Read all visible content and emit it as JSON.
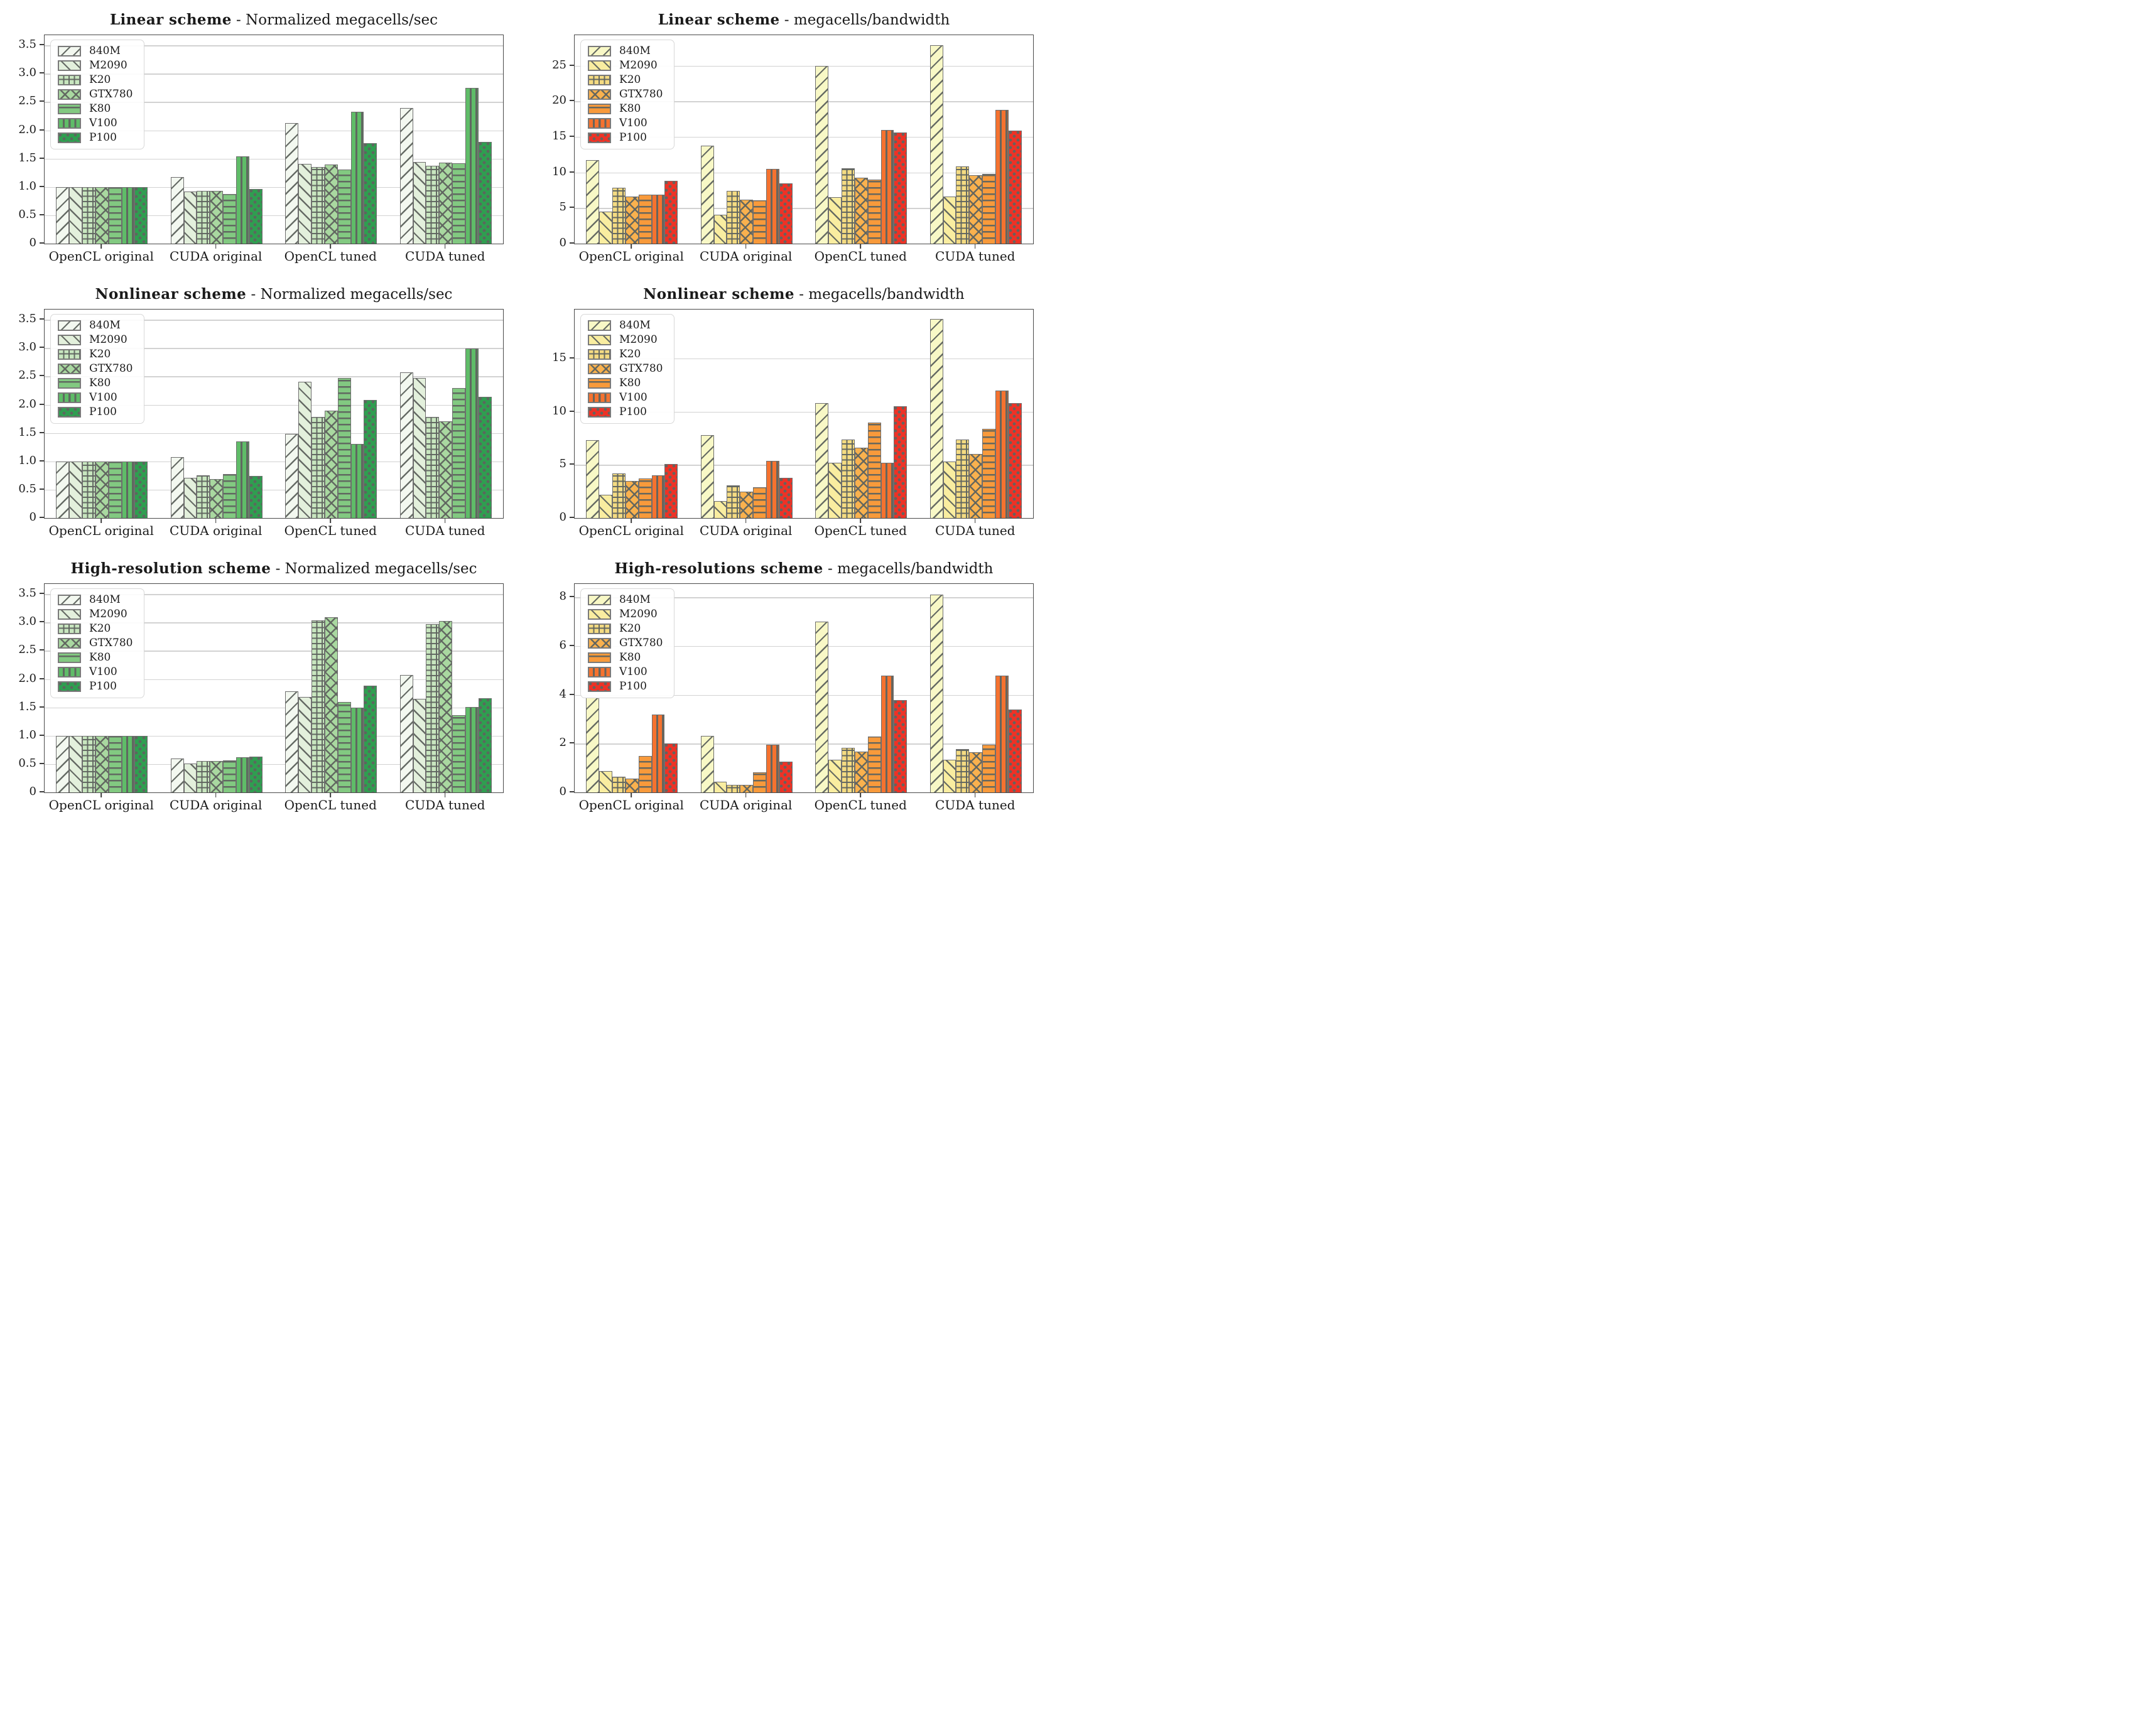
{
  "figure": {
    "style": {
      "hatch_color": "#5f645f",
      "bar_edge_color": "#6e6e6e",
      "gridline_color": "#d2d2d2",
      "spine_color": "#4a4a4a"
    }
  },
  "chart_data": [
    {
      "id": "linear-norm",
      "type": "bar",
      "title_bold": "Linear scheme",
      "title_sep": " - ",
      "title_regular": "Normalized megacells/sec",
      "categories": [
        "OpenCL original",
        "CUDA original",
        "OpenCL tuned",
        "CUDA tuned"
      ],
      "ylim": [
        0,
        3.68
      ],
      "grid": true,
      "legend_position": "upper-left",
      "yticks": [
        {
          "v": 0,
          "label": "0"
        },
        {
          "v": 0.5,
          "label": "0.5"
        },
        {
          "v": 1.0,
          "label": "1.0"
        },
        {
          "v": 1.5,
          "label": "1.5"
        },
        {
          "v": 2.0,
          "label": "2.0"
        },
        {
          "v": 2.5,
          "label": "2.5"
        },
        {
          "v": 3.0,
          "label": "3.0"
        },
        {
          "v": 3.5,
          "label": "3.5"
        }
      ],
      "series": [
        {
          "name": "840M",
          "hatch": "fslash",
          "color": "#f3f8f0",
          "values": [
            1.0,
            1.18,
            2.13,
            2.39
          ]
        },
        {
          "name": "M2090",
          "hatch": "bslash",
          "color": "#e3f0dc",
          "values": [
            1.0,
            0.92,
            1.41,
            1.44
          ]
        },
        {
          "name": "K20",
          "hatch": "grid",
          "color": "#c8e6bf",
          "values": [
            1.0,
            0.93,
            1.35,
            1.38
          ]
        },
        {
          "name": "GTX780",
          "hatch": "cross",
          "color": "#a9d8a0",
          "values": [
            1.0,
            0.93,
            1.4,
            1.43
          ]
        },
        {
          "name": "K80",
          "hatch": "horiz",
          "color": "#82c981",
          "values": [
            1.0,
            0.88,
            1.31,
            1.42
          ]
        },
        {
          "name": "V100",
          "hatch": "vert",
          "color": "#5fbc68",
          "values": [
            1.0,
            1.54,
            2.33,
            2.75
          ]
        },
        {
          "name": "P100",
          "hatch": "dot",
          "color": "#2f9e50",
          "values": [
            1.0,
            0.96,
            1.77,
            1.8
          ]
        }
      ]
    },
    {
      "id": "linear-bw",
      "type": "bar",
      "title_bold": "Linear scheme",
      "title_sep": " - ",
      "title_regular": "megacells/bandwidth",
      "categories": [
        "OpenCL original",
        "CUDA original",
        "OpenCL tuned",
        "CUDA tuned"
      ],
      "ylim": [
        0,
        29.3
      ],
      "grid": true,
      "legend_position": "upper-left",
      "yticks": [
        {
          "v": 0,
          "label": "0"
        },
        {
          "v": 5,
          "label": "5"
        },
        {
          "v": 10,
          "label": "10"
        },
        {
          "v": 15,
          "label": "15"
        },
        {
          "v": 20,
          "label": "20"
        },
        {
          "v": 25,
          "label": "25"
        }
      ],
      "series": [
        {
          "name": "840M",
          "hatch": "fslash",
          "color": "#f8f8c6",
          "values": [
            11.7,
            13.8,
            25.0,
            27.9
          ]
        },
        {
          "name": "M2090",
          "hatch": "bslash",
          "color": "#f9eda0",
          "values": [
            4.5,
            4.1,
            6.5,
            6.6
          ]
        },
        {
          "name": "K20",
          "hatch": "grid",
          "color": "#f4db82",
          "values": [
            7.9,
            7.4,
            10.6,
            10.9
          ]
        },
        {
          "name": "GTX780",
          "hatch": "cross",
          "color": "#f9b14e",
          "values": [
            6.6,
            6.2,
            9.3,
            9.6
          ]
        },
        {
          "name": "K80",
          "hatch": "horiz",
          "color": "#f89a3b",
          "values": [
            6.9,
            6.1,
            9.0,
            9.8
          ]
        },
        {
          "name": "V100",
          "hatch": "vert",
          "color": "#f5722f",
          "values": [
            6.9,
            10.5,
            16.0,
            18.8
          ]
        },
        {
          "name": "P100",
          "hatch": "dot",
          "color": "#ee3226",
          "values": [
            8.8,
            8.5,
            15.6,
            15.9
          ]
        }
      ]
    },
    {
      "id": "nonlinear-norm",
      "type": "bar",
      "title_bold": "Nonlinear scheme",
      "title_sep": " - ",
      "title_regular": "Normalized megacells/sec",
      "categories": [
        "OpenCL original",
        "CUDA original",
        "OpenCL tuned",
        "CUDA tuned"
      ],
      "ylim": [
        0,
        3.68
      ],
      "grid": true,
      "legend_position": "upper-left",
      "yticks": [
        {
          "v": 0,
          "label": "0"
        },
        {
          "v": 0.5,
          "label": "0.5"
        },
        {
          "v": 1.0,
          "label": "1.0"
        },
        {
          "v": 1.5,
          "label": "1.5"
        },
        {
          "v": 2.0,
          "label": "2.0"
        },
        {
          "v": 2.5,
          "label": "2.5"
        },
        {
          "v": 3.0,
          "label": "3.0"
        },
        {
          "v": 3.5,
          "label": "3.5"
        }
      ],
      "series": [
        {
          "name": "840M",
          "hatch": "fslash",
          "color": "#f3f8f0",
          "values": [
            1.0,
            1.07,
            1.49,
            2.57
          ]
        },
        {
          "name": "M2090",
          "hatch": "bslash",
          "color": "#e3f0dc",
          "values": [
            1.0,
            0.71,
            2.41,
            2.47
          ]
        },
        {
          "name": "K20",
          "hatch": "grid",
          "color": "#c8e6bf",
          "values": [
            1.0,
            0.75,
            1.79,
            1.78
          ]
        },
        {
          "name": "GTX780",
          "hatch": "cross",
          "color": "#a9d8a0",
          "values": [
            1.0,
            0.69,
            1.9,
            1.71
          ]
        },
        {
          "name": "K80",
          "hatch": "horiz",
          "color": "#82c981",
          "values": [
            1.0,
            0.78,
            2.47,
            2.29
          ]
        },
        {
          "name": "V100",
          "hatch": "vert",
          "color": "#5fbc68",
          "values": [
            1.0,
            1.35,
            1.31,
            2.99
          ]
        },
        {
          "name": "P100",
          "hatch": "dot",
          "color": "#2f9e50",
          "values": [
            1.0,
            0.74,
            2.08,
            2.14
          ]
        }
      ]
    },
    {
      "id": "nonlinear-bw",
      "type": "bar",
      "title_bold": "Nonlinear scheme",
      "title_sep": " - ",
      "title_regular": "megacells/bandwidth",
      "categories": [
        "OpenCL original",
        "CUDA original",
        "OpenCL tuned",
        "CUDA tuned"
      ],
      "ylim": [
        0,
        19.6
      ],
      "grid": true,
      "legend_position": "upper-left",
      "yticks": [
        {
          "v": 0,
          "label": "0"
        },
        {
          "v": 5,
          "label": "5"
        },
        {
          "v": 10,
          "label": "10"
        },
        {
          "v": 15,
          "label": "15"
        }
      ],
      "series": [
        {
          "name": "840M",
          "hatch": "fslash",
          "color": "#f8f8c6",
          "values": [
            7.3,
            7.8,
            10.8,
            18.7
          ]
        },
        {
          "name": "M2090",
          "hatch": "bslash",
          "color": "#f9eda0",
          "values": [
            2.2,
            1.6,
            5.2,
            5.3
          ]
        },
        {
          "name": "K20",
          "hatch": "grid",
          "color": "#f4db82",
          "values": [
            4.2,
            3.1,
            7.4,
            7.4
          ]
        },
        {
          "name": "GTX780",
          "hatch": "cross",
          "color": "#f9b14e",
          "values": [
            3.5,
            2.5,
            6.6,
            6.0
          ]
        },
        {
          "name": "K80",
          "hatch": "horiz",
          "color": "#f89a3b",
          "values": [
            3.7,
            2.9,
            9.0,
            8.4
          ]
        },
        {
          "name": "V100",
          "hatch": "vert",
          "color": "#f5722f",
          "values": [
            4.0,
            5.4,
            5.2,
            12.0
          ]
        },
        {
          "name": "P100",
          "hatch": "dot",
          "color": "#ee3226",
          "values": [
            5.1,
            3.8,
            10.5,
            10.8
          ]
        }
      ]
    },
    {
      "id": "highres-norm",
      "type": "bar",
      "title_bold": "High-resolution scheme",
      "title_sep": " - ",
      "title_regular": "Normalized megacells/sec",
      "categories": [
        "OpenCL original",
        "CUDA original",
        "OpenCL tuned",
        "CUDA tuned"
      ],
      "ylim": [
        0,
        3.68
      ],
      "grid": true,
      "legend_position": "upper-left",
      "yticks": [
        {
          "v": 0,
          "label": "0"
        },
        {
          "v": 0.5,
          "label": "0.5"
        },
        {
          "v": 1.0,
          "label": "1.0"
        },
        {
          "v": 1.5,
          "label": "1.5"
        },
        {
          "v": 2.0,
          "label": "2.0"
        },
        {
          "v": 2.5,
          "label": "2.5"
        },
        {
          "v": 3.0,
          "label": "3.0"
        },
        {
          "v": 3.5,
          "label": "3.5"
        }
      ],
      "series": [
        {
          "name": "840M",
          "hatch": "fslash",
          "color": "#f3f8f0",
          "values": [
            1.0,
            0.6,
            1.78,
            2.07
          ]
        },
        {
          "name": "M2090",
          "hatch": "bslash",
          "color": "#e3f0dc",
          "values": [
            1.0,
            0.51,
            1.68,
            1.65
          ]
        },
        {
          "name": "K20",
          "hatch": "grid",
          "color": "#c8e6bf",
          "values": [
            1.0,
            0.55,
            3.04,
            2.97
          ]
        },
        {
          "name": "GTX780",
          "hatch": "cross",
          "color": "#a9d8a0",
          "values": [
            1.0,
            0.55,
            3.09,
            3.03
          ]
        },
        {
          "name": "K80",
          "hatch": "horiz",
          "color": "#82c981",
          "values": [
            1.0,
            0.57,
            1.6,
            1.36
          ]
        },
        {
          "name": "V100",
          "hatch": "vert",
          "color": "#5fbc68",
          "values": [
            1.0,
            0.62,
            1.5,
            1.51
          ]
        },
        {
          "name": "P100",
          "hatch": "dot",
          "color": "#2f9e50",
          "values": [
            1.0,
            0.63,
            1.88,
            1.66
          ]
        }
      ]
    },
    {
      "id": "highres-bw",
      "type": "bar",
      "title_bold": "High-resolutions scheme",
      "title_sep": " - ",
      "title_regular": "megacells/bandwidth",
      "categories": [
        "OpenCL original",
        "CUDA original",
        "OpenCL tuned",
        "CUDA tuned"
      ],
      "ylim": [
        0,
        8.55
      ],
      "grid": true,
      "legend_position": "upper-left",
      "yticks": [
        {
          "v": 0,
          "label": "0"
        },
        {
          "v": 2,
          "label": "2"
        },
        {
          "v": 4,
          "label": "4"
        },
        {
          "v": 6,
          "label": "6"
        },
        {
          "v": 8,
          "label": "8"
        }
      ],
      "series": [
        {
          "name": "840M",
          "hatch": "fslash",
          "color": "#f8f8c6",
          "values": [
            3.9,
            2.32,
            7.0,
            8.1
          ]
        },
        {
          "name": "M2090",
          "hatch": "bslash",
          "color": "#f9eda0",
          "values": [
            0.87,
            0.43,
            1.35,
            1.33
          ]
        },
        {
          "name": "K20",
          "hatch": "grid",
          "color": "#f4db82",
          "values": [
            0.64,
            0.32,
            1.82,
            1.78
          ]
        },
        {
          "name": "GTX780",
          "hatch": "cross",
          "color": "#f9b14e",
          "values": [
            0.57,
            0.31,
            1.68,
            1.65
          ]
        },
        {
          "name": "K80",
          "hatch": "horiz",
          "color": "#f89a3b",
          "values": [
            1.5,
            0.82,
            2.3,
            1.95
          ]
        },
        {
          "name": "V100",
          "hatch": "vert",
          "color": "#f5722f",
          "values": [
            3.2,
            1.97,
            4.79,
            4.79
          ]
        },
        {
          "name": "P100",
          "hatch": "dot",
          "color": "#ee3226",
          "values": [
            2.02,
            1.26,
            3.78,
            3.4
          ]
        }
      ]
    }
  ]
}
